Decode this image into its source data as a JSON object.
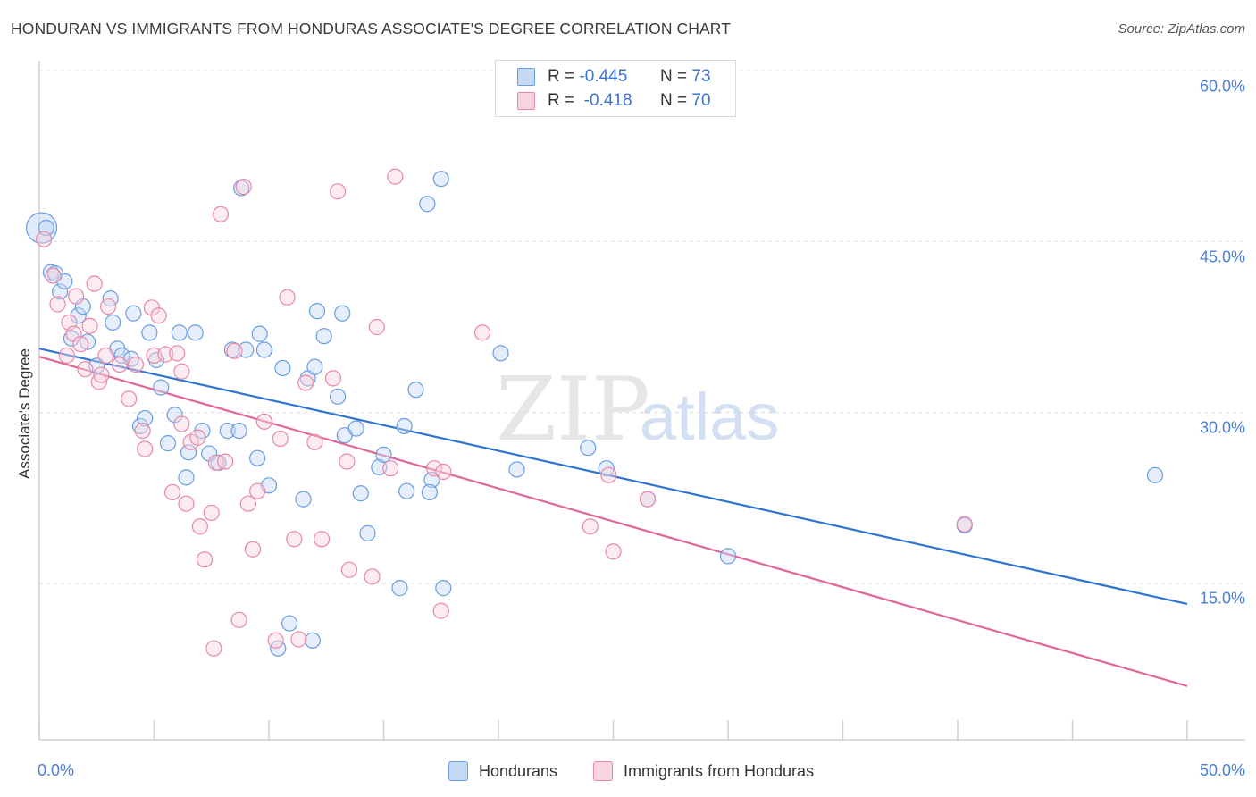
{
  "header": {
    "title": "HONDURAN VS IMMIGRANTS FROM HONDURAS ASSOCIATE'S DEGREE CORRELATION CHART",
    "source": "Source: ZipAtlas.com"
  },
  "watermark": {
    "zip": "ZIP",
    "atlas": "atlas"
  },
  "legend_top": {
    "rows": [
      {
        "r_label": "R =",
        "r_value": "-0.445",
        "n_label": "N =",
        "n_value": "73",
        "color": "#a9c6f0"
      },
      {
        "r_label": "R =",
        "r_value": "-0.418",
        "n_label": "N =",
        "n_value": "70",
        "color": "#f5b9ca"
      }
    ]
  },
  "legend_bottom": {
    "items": [
      {
        "label": "Hondurans",
        "color": "#a9c6f0"
      },
      {
        "label": "Immigrants from Honduras",
        "color": "#f5b9ca"
      }
    ]
  },
  "axes": {
    "ylabel": "Associate's Degree",
    "yticks": [
      "60.0%",
      "45.0%",
      "30.0%",
      "15.0%"
    ],
    "xticks": [
      "0.0%",
      "50.0%"
    ]
  },
  "chart_data": {
    "type": "scatter",
    "title": "HONDURAN VS IMMIGRANTS FROM HONDURAS ASSOCIATE'S DEGREE CORRELATION CHART",
    "xlabel": "",
    "ylabel": "Associate's Degree",
    "xlim": [
      0,
      50
    ],
    "ylim": [
      0,
      66
    ],
    "yticks": [
      15,
      30,
      45,
      60
    ],
    "xticks": [
      0,
      50
    ],
    "grid": "horizontal dashed",
    "legend": "top-center and bottom",
    "series": [
      {
        "name": "Hondurans",
        "color": "#6a9de0",
        "fill": "#c5d9f5",
        "r": -0.445,
        "n": 73,
        "trend": {
          "x": [
            0,
            50
          ],
          "y": [
            35.6,
            13.2
          ]
        },
        "points": [
          [
            0.3,
            46.2
          ],
          [
            0.5,
            42.3
          ],
          [
            0.7,
            42.2
          ],
          [
            0.9,
            40.6
          ],
          [
            1.1,
            41.5
          ],
          [
            1.7,
            38.5
          ],
          [
            1.9,
            39.3
          ],
          [
            1.4,
            36.5
          ],
          [
            2.1,
            36.2
          ],
          [
            2.5,
            34.1
          ],
          [
            3.1,
            40.0
          ],
          [
            3.2,
            37.9
          ],
          [
            3.4,
            35.6
          ],
          [
            3.6,
            35.0
          ],
          [
            4.0,
            34.7
          ],
          [
            4.1,
            38.7
          ],
          [
            4.4,
            28.8
          ],
          [
            4.6,
            29.5
          ],
          [
            4.8,
            37.0
          ],
          [
            5.1,
            34.6
          ],
          [
            5.3,
            32.2
          ],
          [
            5.6,
            27.3
          ],
          [
            5.9,
            29.8
          ],
          [
            6.1,
            37.0
          ],
          [
            6.4,
            24.3
          ],
          [
            6.5,
            26.5
          ],
          [
            6.8,
            37.0
          ],
          [
            7.1,
            28.4
          ],
          [
            7.4,
            26.4
          ],
          [
            7.8,
            25.6
          ],
          [
            8.2,
            28.4
          ],
          [
            8.4,
            35.5
          ],
          [
            8.7,
            28.4
          ],
          [
            8.8,
            49.7
          ],
          [
            9.0,
            35.5
          ],
          [
            9.5,
            26.0
          ],
          [
            9.6,
            36.9
          ],
          [
            9.8,
            35.5
          ],
          [
            10.0,
            23.6
          ],
          [
            10.6,
            33.9
          ],
          [
            11.5,
            22.4
          ],
          [
            11.7,
            33.0
          ],
          [
            12.1,
            38.9
          ],
          [
            12.4,
            36.7
          ],
          [
            13.0,
            31.4
          ],
          [
            13.2,
            38.7
          ],
          [
            13.3,
            28.0
          ],
          [
            13.8,
            28.6
          ],
          [
            14.0,
            22.9
          ],
          [
            14.3,
            19.4
          ],
          [
            14.8,
            25.2
          ],
          [
            15.0,
            26.3
          ],
          [
            16.0,
            23.1
          ],
          [
            15.9,
            28.8
          ],
          [
            16.4,
            32.0
          ],
          [
            16.9,
            48.3
          ],
          [
            17.1,
            24.1
          ],
          [
            17.5,
            50.5
          ],
          [
            17.6,
            14.6
          ],
          [
            20.1,
            35.2
          ],
          [
            20.8,
            25.0
          ],
          [
            23.9,
            26.9
          ],
          [
            24.7,
            25.1
          ],
          [
            26.5,
            22.4
          ],
          [
            30.0,
            17.4
          ],
          [
            40.3,
            20.1
          ],
          [
            48.6,
            24.5
          ],
          [
            15.7,
            14.6
          ],
          [
            10.9,
            11.5
          ],
          [
            11.9,
            10.0
          ],
          [
            10.4,
            9.3
          ],
          [
            12.0,
            34.0
          ],
          [
            17.0,
            23.0
          ]
        ],
        "large_point": [
          0.1,
          46.2
        ]
      },
      {
        "name": "Immigrants from Honduras",
        "color": "#e888a7",
        "fill": "#f9d3de",
        "r": -0.418,
        "n": 70,
        "trend": {
          "x": [
            0,
            50
          ],
          "y": [
            34.9,
            6.0
          ]
        },
        "points": [
          [
            0.2,
            45.2
          ],
          [
            0.6,
            42.0
          ],
          [
            0.8,
            39.5
          ],
          [
            1.2,
            35.0
          ],
          [
            1.3,
            37.9
          ],
          [
            1.5,
            36.9
          ],
          [
            1.6,
            40.2
          ],
          [
            1.8,
            36.0
          ],
          [
            2.0,
            33.8
          ],
          [
            2.2,
            37.6
          ],
          [
            2.4,
            41.3
          ],
          [
            2.6,
            32.7
          ],
          [
            2.7,
            33.3
          ],
          [
            2.9,
            35.0
          ],
          [
            3.0,
            39.3
          ],
          [
            3.5,
            34.2
          ],
          [
            3.9,
            31.2
          ],
          [
            4.2,
            34.2
          ],
          [
            4.5,
            28.4
          ],
          [
            4.6,
            26.8
          ],
          [
            4.9,
            39.2
          ],
          [
            5.0,
            35.0
          ],
          [
            5.2,
            38.5
          ],
          [
            5.5,
            35.1
          ],
          [
            5.8,
            23.0
          ],
          [
            6.0,
            35.2
          ],
          [
            6.2,
            33.6
          ],
          [
            6.4,
            22.0
          ],
          [
            6.6,
            27.4
          ],
          [
            6.9,
            27.8
          ],
          [
            7.0,
            20.0
          ],
          [
            7.2,
            17.1
          ],
          [
            7.5,
            21.2
          ],
          [
            7.7,
            25.6
          ],
          [
            7.9,
            47.4
          ],
          [
            8.1,
            25.7
          ],
          [
            8.5,
            35.4
          ],
          [
            8.7,
            11.8
          ],
          [
            8.9,
            49.8
          ],
          [
            9.1,
            22.0
          ],
          [
            9.3,
            18.0
          ],
          [
            9.5,
            23.1
          ],
          [
            9.8,
            29.2
          ],
          [
            10.3,
            10.0
          ],
          [
            10.5,
            27.7
          ],
          [
            10.8,
            40.1
          ],
          [
            11.1,
            18.9
          ],
          [
            11.3,
            10.1
          ],
          [
            11.6,
            32.6
          ],
          [
            12.0,
            27.4
          ],
          [
            12.3,
            18.9
          ],
          [
            12.8,
            33.0
          ],
          [
            13.0,
            49.4
          ],
          [
            13.4,
            25.7
          ],
          [
            13.5,
            16.2
          ],
          [
            14.5,
            15.6
          ],
          [
            14.7,
            37.5
          ],
          [
            15.3,
            25.1
          ],
          [
            15.5,
            50.7
          ],
          [
            17.2,
            25.1
          ],
          [
            17.5,
            12.6
          ],
          [
            17.6,
            24.8
          ],
          [
            19.3,
            37.0
          ],
          [
            24.0,
            20.0
          ],
          [
            25.0,
            17.8
          ],
          [
            24.8,
            24.5
          ],
          [
            26.5,
            22.4
          ],
          [
            40.3,
            20.2
          ],
          [
            7.6,
            9.3
          ],
          [
            6.2,
            29.0
          ]
        ]
      }
    ]
  }
}
